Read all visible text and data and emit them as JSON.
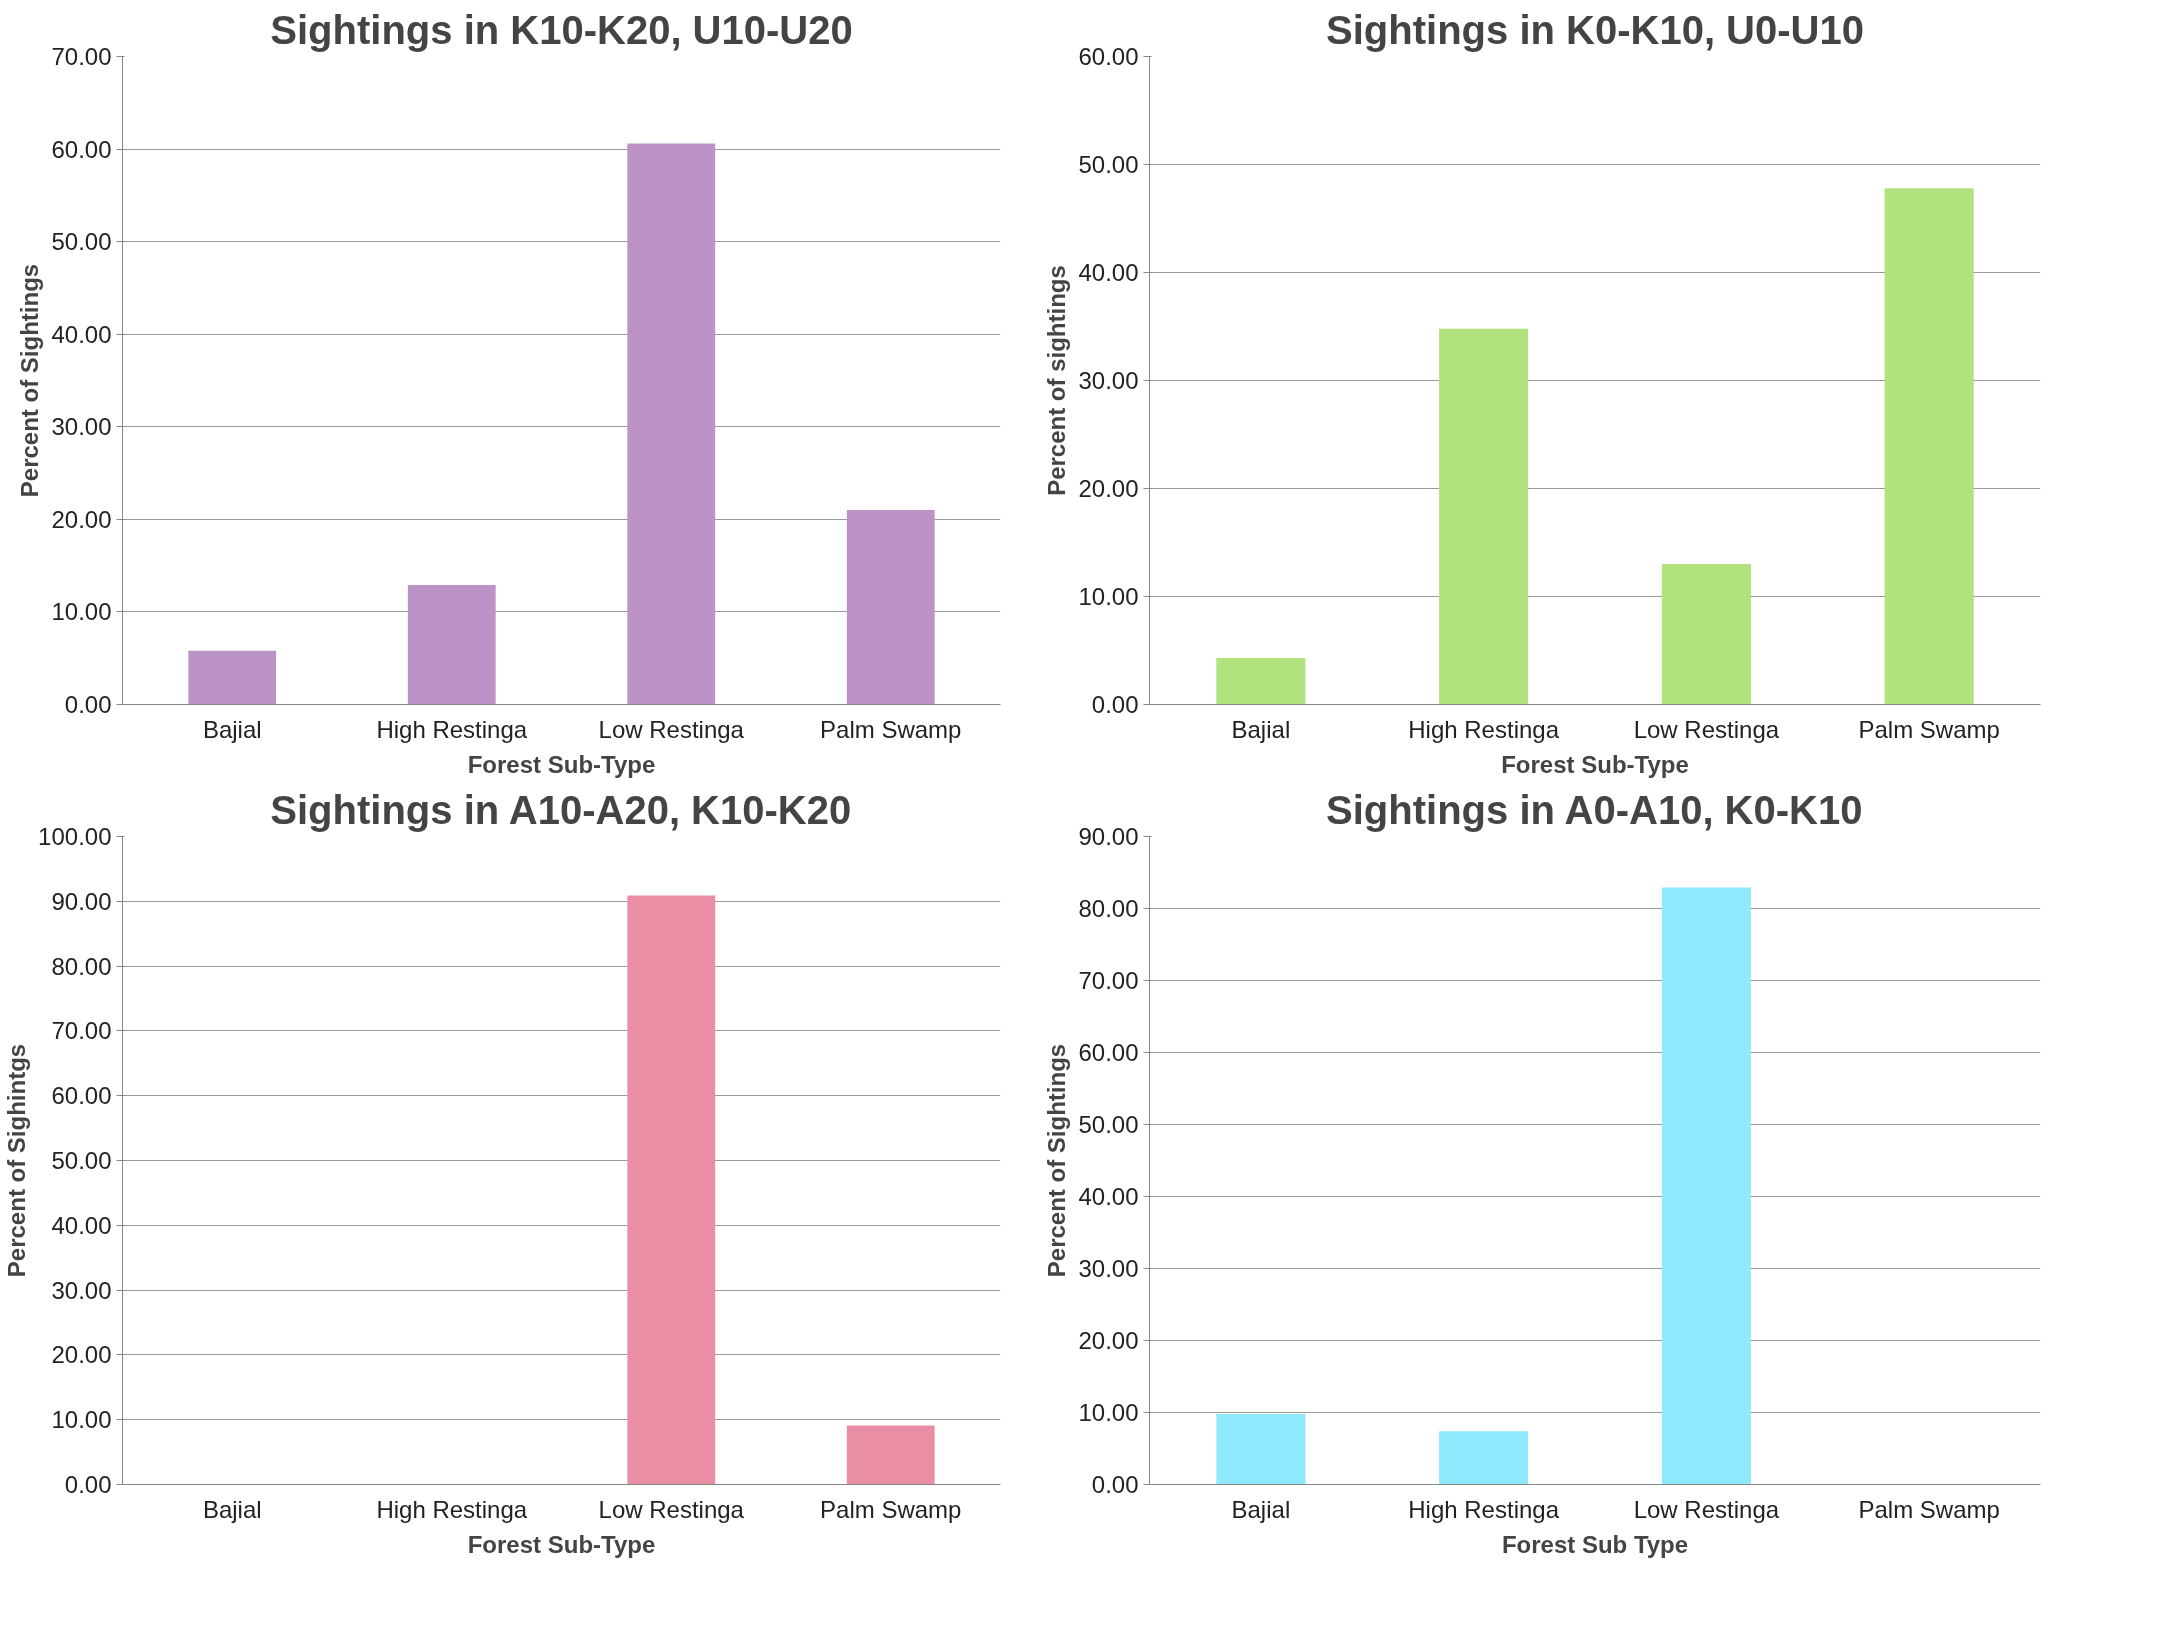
{
  "chart_data": [
    {
      "type": "bar",
      "title": "Sightings in K10-K20, U10-U20",
      "xlabel": "Forest Sub-Type",
      "ylabel": "Percent of Sightings",
      "categories": [
        "Bajial",
        "High Restinga",
        "Low Restinga",
        "Palm Swamp"
      ],
      "values": [
        5.8,
        12.9,
        60.6,
        21.0
      ],
      "color": "#bc93c6",
      "ylim": [
        0,
        70
      ],
      "yticks": [
        {
          "value": 0,
          "label": "0.00"
        },
        {
          "value": 10,
          "label": "10.00"
        },
        {
          "value": 20,
          "label": "20.00"
        },
        {
          "value": 30,
          "label": "30.00"
        },
        {
          "value": 40,
          "label": "40.00"
        },
        {
          "value": 50,
          "label": "50.00"
        },
        {
          "value": 60,
          "label": "60.00"
        },
        {
          "value": 70,
          "label": "70.00"
        }
      ],
      "grid": "y"
    },
    {
      "type": "bar",
      "title": "Sightings in K0-K10, U0-U10",
      "xlabel": "Forest Sub-Type",
      "ylabel": "Percent of sightings",
      "categories": [
        "Bajial",
        "High Restinga",
        "Low Restinga",
        "Palm Swamp"
      ],
      "values": [
        4.3,
        34.8,
        13.0,
        47.8
      ],
      "color": "#b2e27e",
      "ylim": [
        0,
        60
      ],
      "yticks": [
        {
          "value": 0,
          "label": "0.00"
        },
        {
          "value": 10,
          "label": "10.00"
        },
        {
          "value": 20,
          "label": "20.00"
        },
        {
          "value": 30,
          "label": "30.00"
        },
        {
          "value": 40,
          "label": "40.00"
        },
        {
          "value": 50,
          "label": "50.00"
        },
        {
          "value": 60,
          "label": "60.00"
        }
      ],
      "grid": "y"
    },
    {
      "type": "bar",
      "title": "Sightings in A10-A20, K10-K20",
      "xlabel": "Forest Sub-Type",
      "ylabel": "Percent of Sighintgs",
      "categories": [
        "Bajial",
        "High Restinga",
        "Low Restinga",
        "Palm Swamp"
      ],
      "values": [
        0,
        0,
        90.9,
        9.1
      ],
      "color": "#ea8ea5",
      "ylim": [
        0,
        100
      ],
      "yticks": [
        {
          "value": 0,
          "label": "0.00"
        },
        {
          "value": 10,
          "label": "10.00"
        },
        {
          "value": 20,
          "label": "20.00"
        },
        {
          "value": 30,
          "label": "30.00"
        },
        {
          "value": 40,
          "label": "40.00"
        },
        {
          "value": 50,
          "label": "50.00"
        },
        {
          "value": 60,
          "label": "60.00"
        },
        {
          "value": 70,
          "label": "70.00"
        },
        {
          "value": 80,
          "label": "80.00"
        },
        {
          "value": 90,
          "label": "90.00"
        },
        {
          "value": 100,
          "label": "100.00"
        }
      ],
      "grid": "y"
    },
    {
      "type": "bar",
      "title": "Sightings in A0-A10, K0-K10",
      "xlabel": "Forest Sub Type",
      "ylabel": "Percent of Sightings",
      "categories": [
        "Bajial",
        "High Restinga",
        "Low Restinga",
        "Palm Swamp"
      ],
      "values": [
        9.8,
        7.4,
        82.9,
        0
      ],
      "color": "#8ee9fc",
      "ylim": [
        0,
        90
      ],
      "yticks": [
        {
          "value": 0,
          "label": "0.00"
        },
        {
          "value": 10,
          "label": "10.00"
        },
        {
          "value": 20,
          "label": "20.00"
        },
        {
          "value": 30,
          "label": "30.00"
        },
        {
          "value": 40,
          "label": "40.00"
        },
        {
          "value": 50,
          "label": "50.00"
        },
        {
          "value": 60,
          "label": "60.00"
        },
        {
          "value": 70,
          "label": "70.00"
        },
        {
          "value": 80,
          "label": "80.00"
        },
        {
          "value": 90,
          "label": "90.00"
        }
      ],
      "grid": "y"
    }
  ]
}
